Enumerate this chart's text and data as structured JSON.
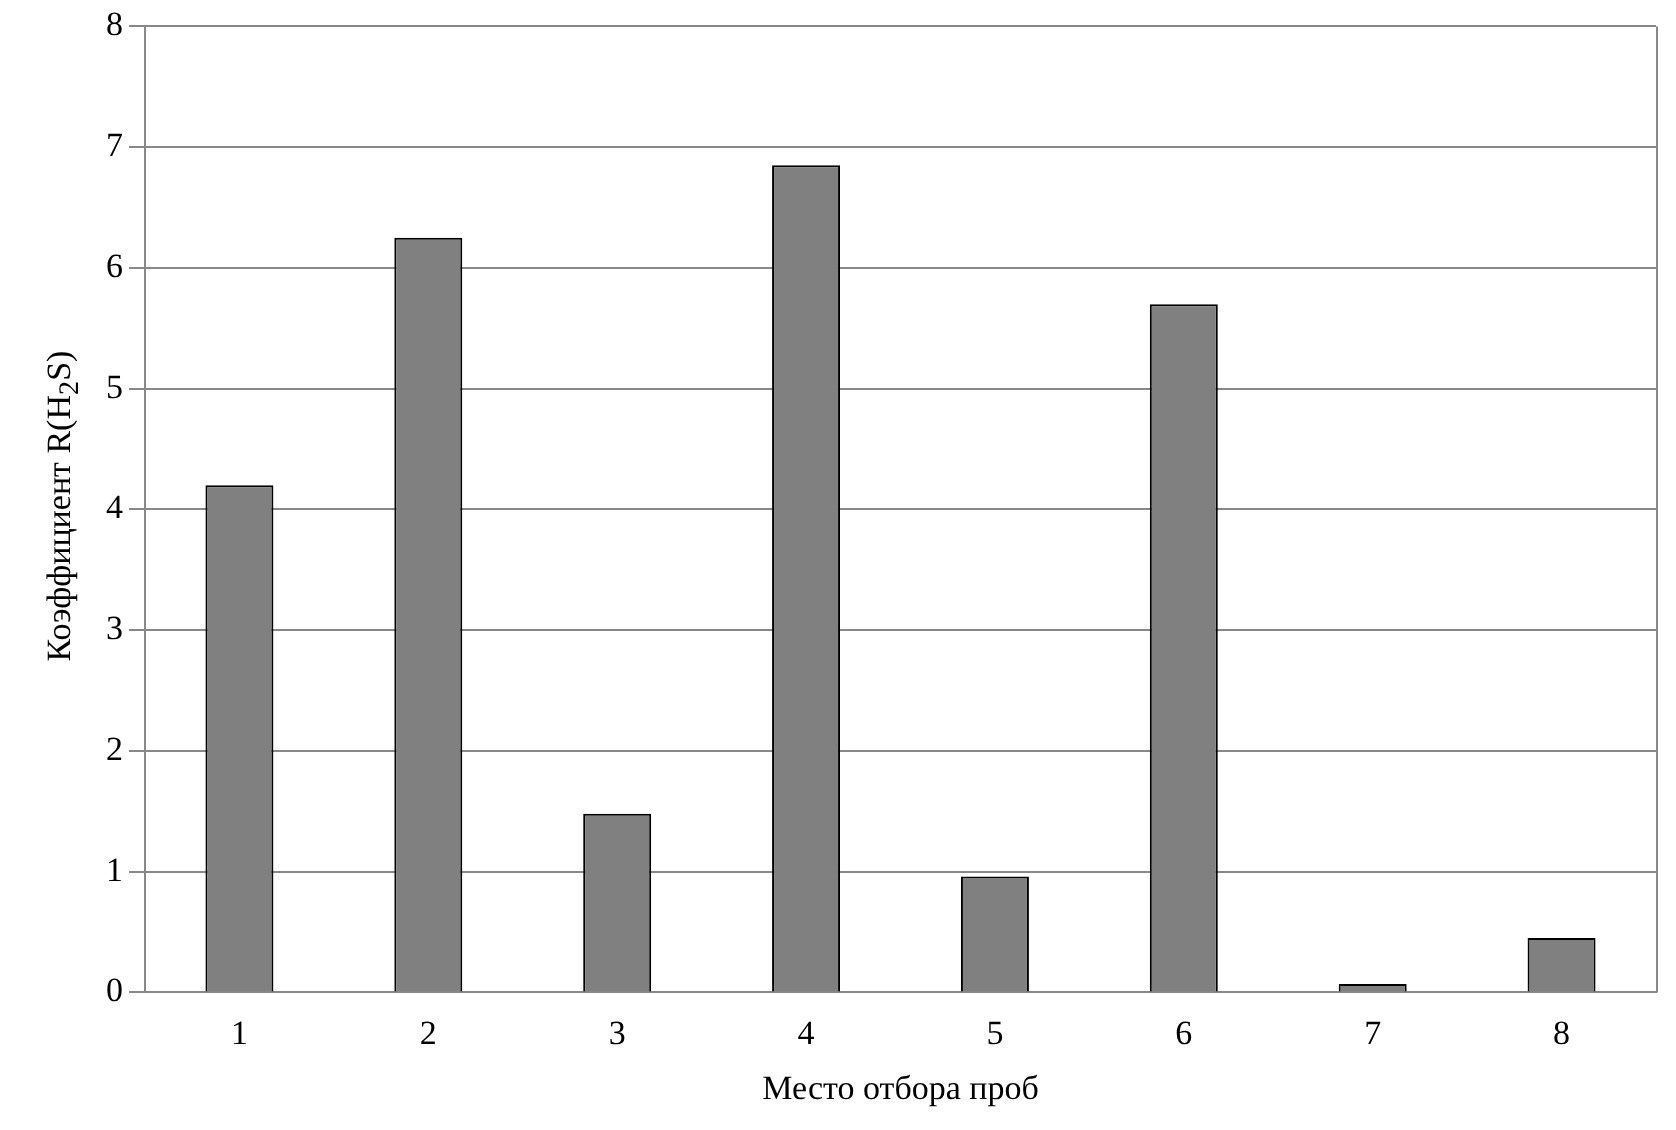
{
  "chart_data": {
    "type": "bar",
    "xlabel": "Место отбора проб",
    "ylabel": "Коэффициент R(H$_{2}$S)",
    "categories": [
      "1",
      "2",
      "3",
      "4",
      "5",
      "6",
      "7",
      "8"
    ],
    "values": [
      4.2,
      6.25,
      1.48,
      6.85,
      0.96,
      5.7,
      0.07,
      0.45
    ],
    "color": "#808080",
    "ylim": [
      0,
      8
    ],
    "yticks": [
      0,
      1,
      2,
      3,
      4,
      5,
      6,
      7,
      8
    ],
    "grid": "y",
    "legend": false
  }
}
